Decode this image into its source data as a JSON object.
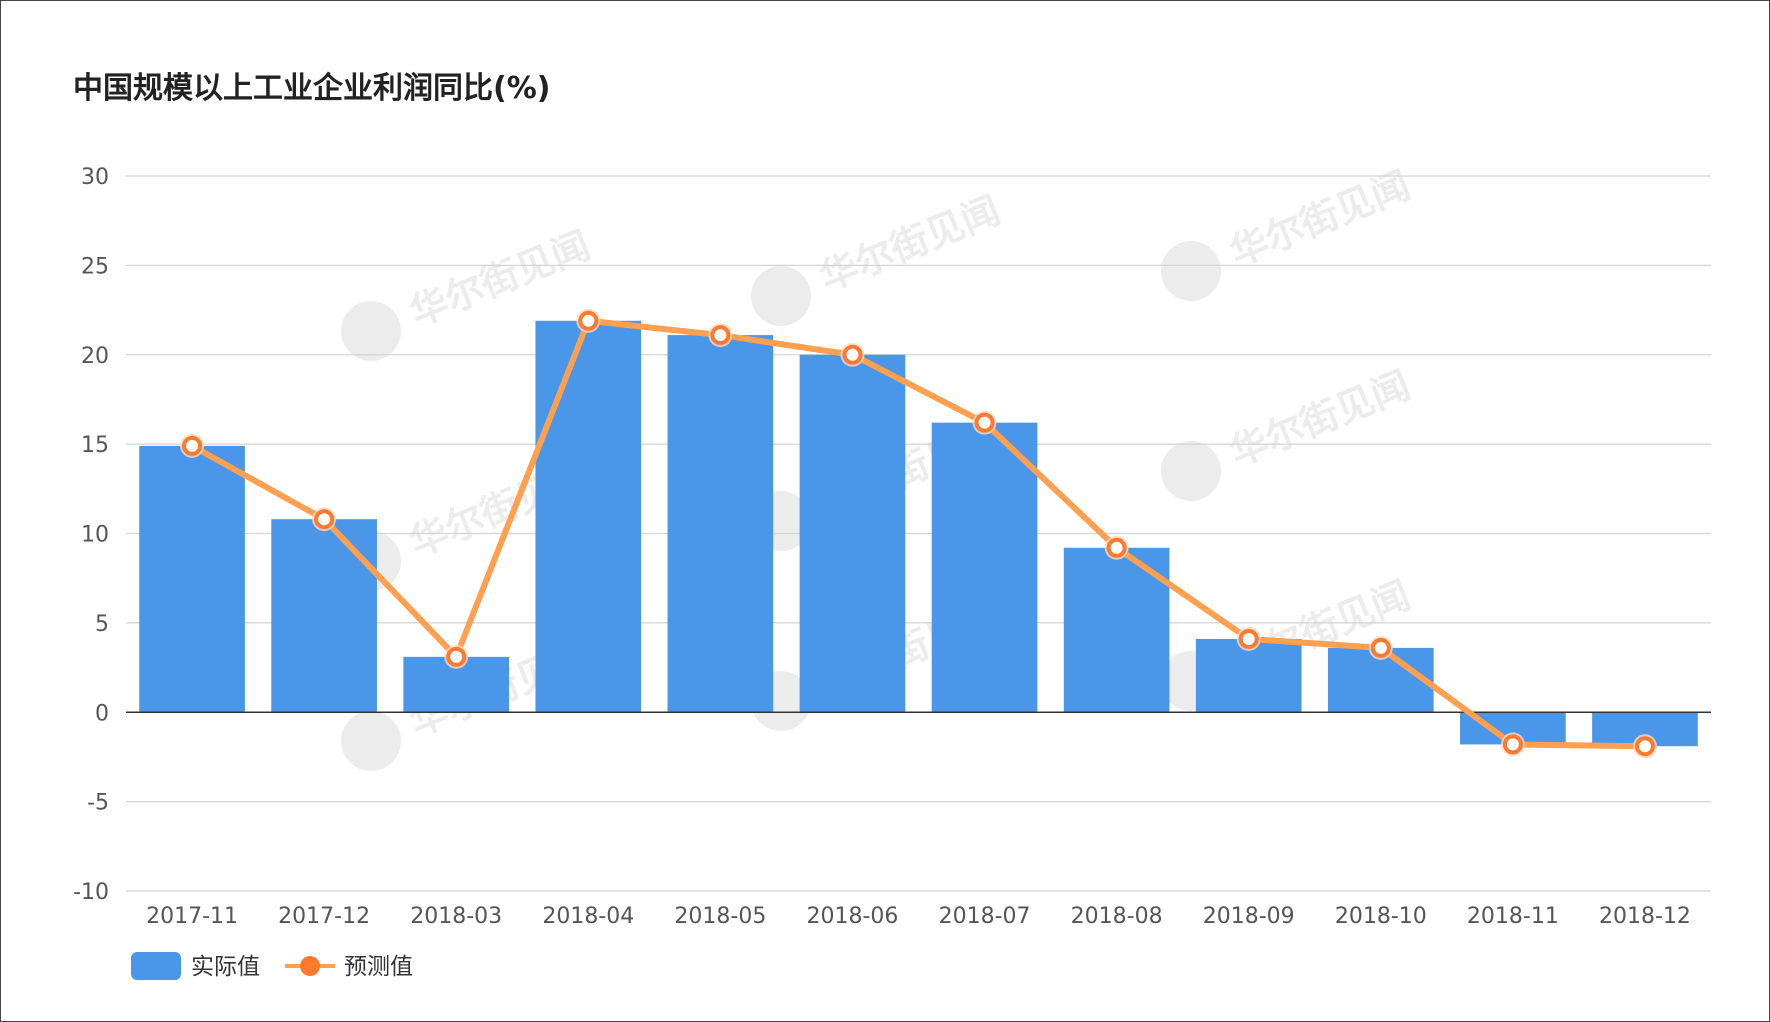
{
  "chart_data": {
    "type": "bar",
    "title": "中国规模以上工业企业利润同比(%)",
    "categories": [
      "2017-11",
      "2017-12",
      "2018-03",
      "2018-04",
      "2018-05",
      "2018-06",
      "2018-07",
      "2018-08",
      "2018-09",
      "2018-10",
      "2018-11",
      "2018-12"
    ],
    "series": [
      {
        "name": "实际值",
        "kind": "bar",
        "color": "#4a96e8",
        "values": [
          14.9,
          10.8,
          3.1,
          21.9,
          21.1,
          20.0,
          16.2,
          9.2,
          4.1,
          3.6,
          -1.8,
          -1.9
        ]
      },
      {
        "name": "预测值",
        "kind": "line",
        "color": "#ff9f50",
        "marker_color": "#ff7a2e",
        "values": [
          14.9,
          10.8,
          3.1,
          21.9,
          21.1,
          20.0,
          16.2,
          9.2,
          4.1,
          3.6,
          -1.8,
          -1.9
        ]
      }
    ],
    "ylim": [
      -10,
      30
    ],
    "yticks": [
      30,
      25,
      20,
      15,
      10,
      5,
      0,
      -5,
      -10
    ],
    "grid": true,
    "legend_position": "bottom-left",
    "watermark": "华尔街见闻"
  }
}
